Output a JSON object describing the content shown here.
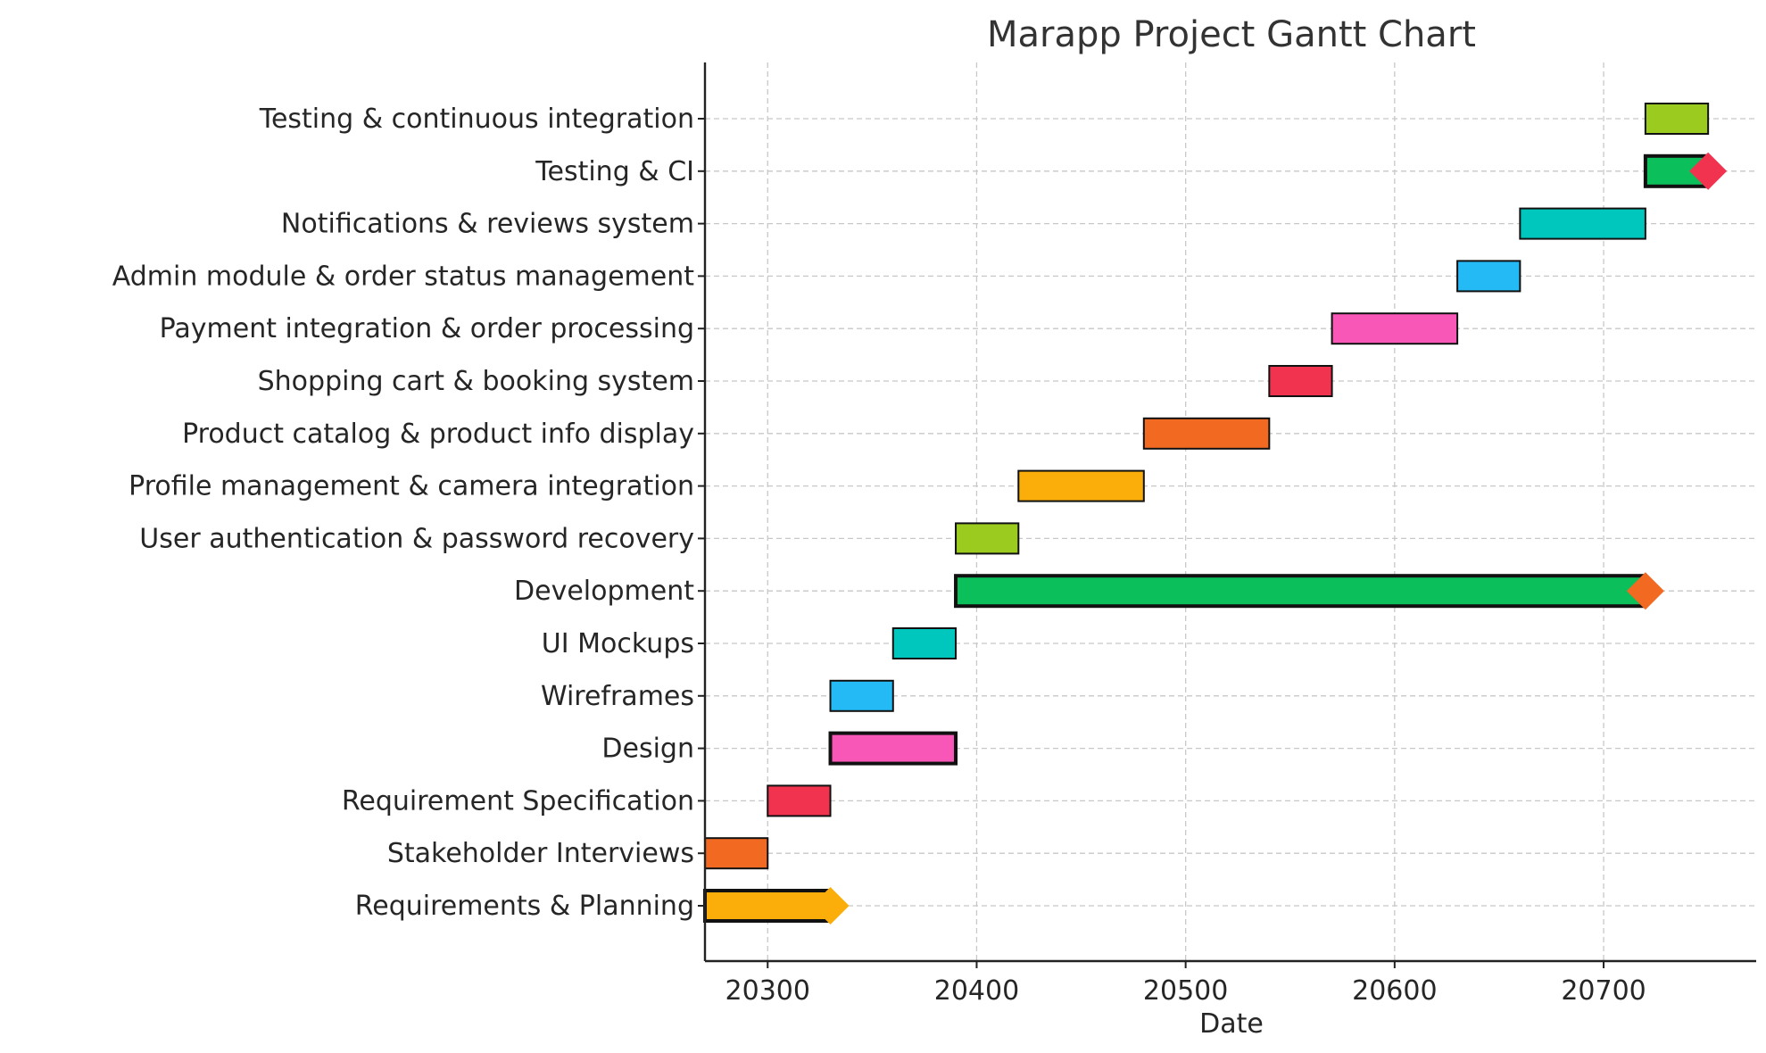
{
  "chart_data": {
    "type": "gantt",
    "title": "Marapp Project Gantt Chart",
    "xlabel": "Date",
    "ylabel": "",
    "xlim": [
      20270,
      20773
    ],
    "xticks": [
      20300,
      20400,
      20500,
      20600,
      20700
    ],
    "grid": true,
    "tasks": [
      {
        "label": "Requirements & Planning",
        "start": 20270,
        "end": 20330,
        "color": "#FBAE0A",
        "summary": true,
        "milestone_color": "#FBAE0A"
      },
      {
        "label": "Stakeholder Interviews",
        "start": 20270,
        "end": 20300,
        "color": "#F26A22",
        "summary": false
      },
      {
        "label": "Requirement Specification",
        "start": 20300,
        "end": 20330,
        "color": "#F23350",
        "summary": false
      },
      {
        "label": "Design",
        "start": 20330,
        "end": 20390,
        "color": "#F857B7",
        "summary": true
      },
      {
        "label": "Wireframes",
        "start": 20330,
        "end": 20360,
        "color": "#24BAF5",
        "summary": false
      },
      {
        "label": "UI Mockups",
        "start": 20360,
        "end": 20390,
        "color": "#00C7BD",
        "summary": false
      },
      {
        "label": "Development",
        "start": 20390,
        "end": 20720,
        "color": "#0BBF5A",
        "summary": true,
        "milestone_color": "#F26A22"
      },
      {
        "label": "User authentication & password recovery",
        "start": 20390,
        "end": 20420,
        "color": "#9BCB1E",
        "summary": false
      },
      {
        "label": "Profile management & camera integration",
        "start": 20420,
        "end": 20480,
        "color": "#FBAE0A",
        "summary": false
      },
      {
        "label": "Product catalog & product info display",
        "start": 20480,
        "end": 20540,
        "color": "#F26A22",
        "summary": false
      },
      {
        "label": "Shopping cart & booking system",
        "start": 20540,
        "end": 20570,
        "color": "#F23350",
        "summary": false
      },
      {
        "label": "Payment integration & order processing",
        "start": 20570,
        "end": 20630,
        "color": "#F857B7",
        "summary": false
      },
      {
        "label": "Admin module & order status management",
        "start": 20630,
        "end": 20660,
        "color": "#24BAF5",
        "summary": false
      },
      {
        "label": "Notifications & reviews system",
        "start": 20660,
        "end": 20720,
        "color": "#00C7BD",
        "summary": false
      },
      {
        "label": "Testing & CI",
        "start": 20720,
        "end": 20750,
        "color": "#0BBF5A",
        "summary": true,
        "milestone_color": "#F23350"
      },
      {
        "label": "Testing & continuous integration",
        "start": 20720,
        "end": 20750,
        "color": "#9BCB1E",
        "summary": false
      }
    ]
  }
}
